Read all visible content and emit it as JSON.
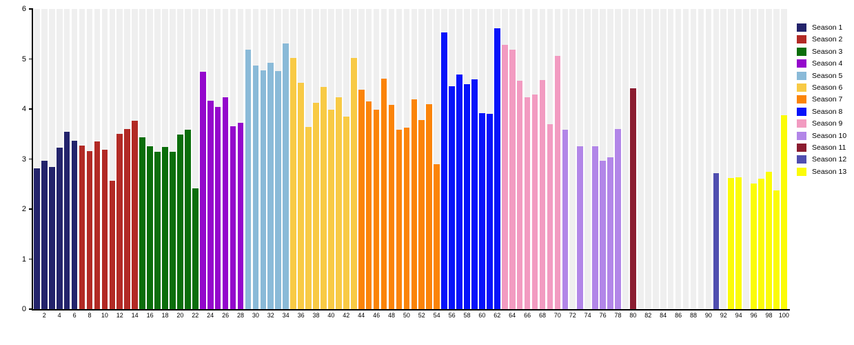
{
  "chart_data": {
    "type": "bar",
    "title": "",
    "xlabel": "",
    "ylabel": "",
    "ylim": [
      0,
      6
    ],
    "y_ticks": [
      0,
      1,
      2,
      3,
      4,
      5,
      6
    ],
    "x_range": [
      1,
      100
    ],
    "x_ticks": [
      2,
      4,
      6,
      8,
      10,
      12,
      14,
      16,
      18,
      20,
      22,
      24,
      26,
      28,
      30,
      32,
      34,
      36,
      38,
      40,
      42,
      44,
      46,
      48,
      50,
      52,
      54,
      56,
      58,
      60,
      62,
      64,
      66,
      68,
      70,
      72,
      74,
      76,
      78,
      80,
      82,
      84,
      86,
      88,
      90,
      92,
      94,
      96,
      98,
      100
    ],
    "grid": "vertical-background-stripes",
    "stripe_color": "#efefef",
    "axis_color": "#000000",
    "legend_position": "right",
    "series": [
      {
        "name": "Season 1",
        "color": "#23236B",
        "points": [
          [
            1,
            2.81
          ],
          [
            2,
            2.96
          ],
          [
            3,
            2.84
          ],
          [
            4,
            3.23
          ],
          [
            5,
            3.55
          ],
          [
            6,
            3.37
          ]
        ]
      },
      {
        "name": "Season 2",
        "color": "#B22A25",
        "points": [
          [
            7,
            3.27
          ],
          [
            8,
            3.16
          ],
          [
            9,
            3.35
          ],
          [
            10,
            3.18
          ],
          [
            11,
            2.56
          ],
          [
            12,
            3.5
          ],
          [
            13,
            3.6
          ],
          [
            14,
            3.76
          ]
        ]
      },
      {
        "name": "Season 3",
        "color": "#0B6E0B",
        "points": [
          [
            15,
            3.44
          ],
          [
            16,
            3.25
          ],
          [
            17,
            3.14
          ],
          [
            18,
            3.24
          ],
          [
            19,
            3.15
          ],
          [
            20,
            3.49
          ],
          [
            21,
            3.58
          ],
          [
            22,
            2.41
          ]
        ]
      },
      {
        "name": "Season 4",
        "color": "#9408CC",
        "points": [
          [
            23,
            4.75
          ],
          [
            24,
            4.17
          ],
          [
            25,
            4.04
          ],
          [
            26,
            4.23
          ],
          [
            27,
            3.66
          ],
          [
            28,
            3.73
          ]
        ]
      },
      {
        "name": "Season 5",
        "color": "#8ABAD8",
        "points": [
          [
            29,
            5.19
          ],
          [
            30,
            4.87
          ],
          [
            31,
            4.77
          ],
          [
            32,
            4.93
          ],
          [
            33,
            4.76
          ],
          [
            34,
            5.31
          ]
        ]
      },
      {
        "name": "Season 6",
        "color": "#F8CA45",
        "points": [
          [
            35,
            5.02
          ],
          [
            36,
            4.52
          ],
          [
            37,
            3.64
          ],
          [
            38,
            4.13
          ],
          [
            39,
            4.44
          ],
          [
            40,
            3.98
          ],
          [
            41,
            4.23
          ],
          [
            42,
            3.85
          ],
          [
            43,
            5.02
          ]
        ]
      },
      {
        "name": "Season 7",
        "color": "#FB8409",
        "points": [
          [
            44,
            4.38
          ],
          [
            45,
            4.15
          ],
          [
            46,
            3.98
          ],
          [
            47,
            4.61
          ],
          [
            48,
            4.08
          ],
          [
            49,
            3.59
          ],
          [
            50,
            3.63
          ],
          [
            51,
            4.2
          ],
          [
            52,
            3.78
          ],
          [
            53,
            4.09
          ],
          [
            54,
            2.9
          ]
        ]
      },
      {
        "name": "Season 8",
        "color": "#0713FA",
        "points": [
          [
            55,
            5.53
          ],
          [
            56,
            4.46
          ],
          [
            57,
            4.69
          ],
          [
            58,
            4.49
          ],
          [
            59,
            4.59
          ],
          [
            60,
            3.92
          ],
          [
            61,
            3.91
          ],
          [
            62,
            5.62
          ]
        ]
      },
      {
        "name": "Season 9",
        "color": "#F29BC1",
        "points": [
          [
            63,
            5.28
          ],
          [
            64,
            5.19
          ],
          [
            65,
            4.57
          ],
          [
            66,
            4.23
          ],
          [
            67,
            4.29
          ],
          [
            68,
            4.58
          ],
          [
            69,
            3.69
          ],
          [
            70,
            5.06
          ]
        ]
      },
      {
        "name": "Season 10",
        "color": "#B286E8",
        "points": [
          [
            71,
            3.59
          ],
          [
            73,
            3.26
          ],
          [
            75,
            3.25
          ],
          [
            76,
            2.97
          ],
          [
            77,
            3.04
          ],
          [
            78,
            3.6
          ]
        ]
      },
      {
        "name": "Season 11",
        "color": "#8B1C30",
        "points": [
          [
            80,
            4.42
          ]
        ]
      },
      {
        "name": "Season 12",
        "color": "#504EB0",
        "points": [
          [
            91,
            2.72
          ]
        ]
      },
      {
        "name": "Season 13",
        "color": "#FBFB08",
        "points": [
          [
            93,
            2.62
          ],
          [
            94,
            2.64
          ],
          [
            96,
            2.51
          ],
          [
            97,
            2.61
          ],
          [
            98,
            2.75
          ],
          [
            99,
            2.37
          ],
          [
            100,
            3.88
          ]
        ]
      }
    ]
  }
}
